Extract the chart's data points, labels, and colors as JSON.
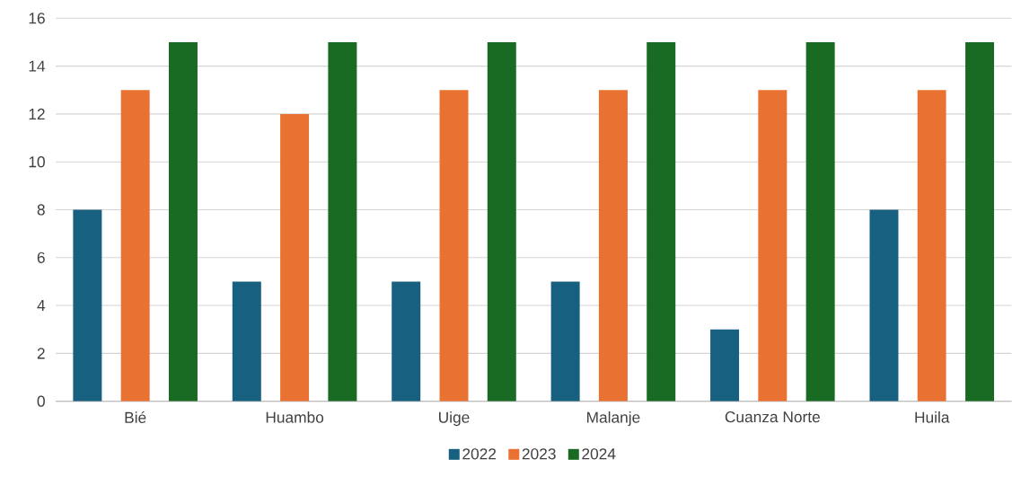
{
  "chart_data": {
    "type": "bar",
    "categories": [
      "Bié",
      "Huambo",
      "Uige",
      "Malanje",
      "Cuanza Norte",
      "Huila"
    ],
    "series": [
      {
        "name": "2022",
        "color": "#17607f",
        "values": [
          8,
          5,
          5,
          5,
          3,
          8
        ]
      },
      {
        "name": "2023",
        "color": "#e97132",
        "values": [
          13,
          12,
          13,
          13,
          13,
          13
        ]
      },
      {
        "name": "2024",
        "color": "#196b24",
        "values": [
          15,
          15,
          15,
          15,
          15,
          15
        ]
      }
    ],
    "ylim": [
      0,
      16
    ],
    "yticks": [
      0,
      2,
      4,
      6,
      8,
      10,
      12,
      14,
      16
    ],
    "grid": "y",
    "legend": "bottom"
  }
}
